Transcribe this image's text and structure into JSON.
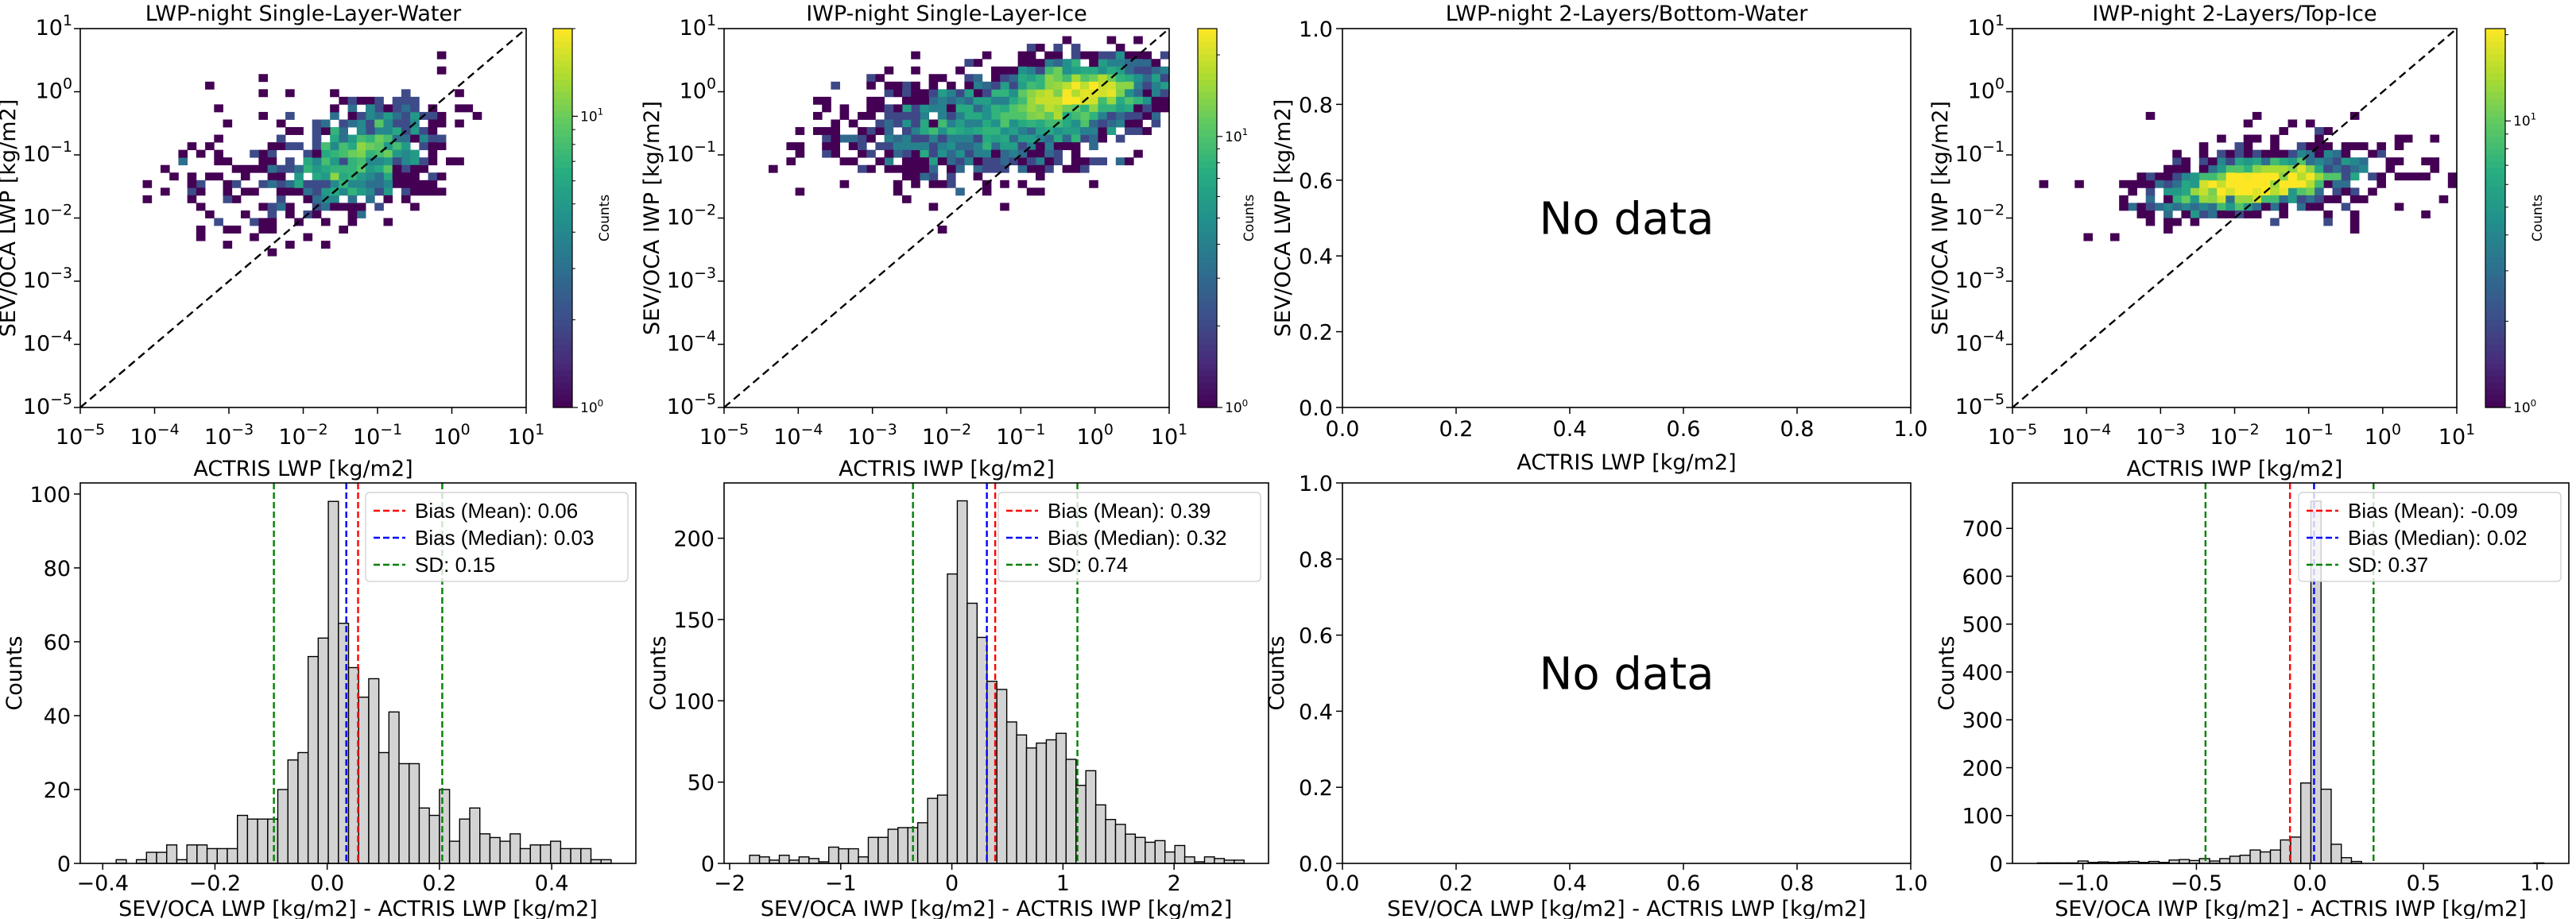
{
  "chart_data": [
    {
      "type": "heatmap",
      "title": "LWP-night Single-Layer-Water",
      "xlabel": "ACTRIS LWP [kg/m2]",
      "ylabel": "SEV/OCA LWP [kg/m2]",
      "xscale": "log",
      "yscale": "log",
      "xlim": [
        1e-05,
        10
      ],
      "ylim": [
        1e-05,
        10
      ],
      "tick_exponents": [
        "−5",
        "−4",
        "−3",
        "−2",
        "−1",
        "0",
        "1"
      ],
      "tick_base": "10",
      "identity_line": true,
      "bins": 50,
      "cmap": "viridis",
      "colorbar": {
        "label": "Counts",
        "scale": "log",
        "range": [
          1,
          20
        ],
        "tick_base": "10",
        "tick_exponents": [
          "0",
          "1"
        ]
      },
      "distribution": {
        "seed": 11,
        "clusters": [
          {
            "n": 700,
            "cx": -1.2,
            "cy": -1.0,
            "sx": 0.45,
            "sy": 0.42,
            "rho": 0.3
          },
          {
            "n": 160,
            "cx": -2.3,
            "cy": -1.3,
            "sx": 0.7,
            "sy": 0.5,
            "rho": 0.0
          }
        ]
      }
    },
    {
      "type": "heatmap",
      "title": "IWP-night Single-Layer-Ice",
      "xlabel": "ACTRIS IWP [kg/m2]",
      "ylabel": "SEV/OCA IWP [kg/m2]",
      "xscale": "log",
      "yscale": "log",
      "xlim": [
        1e-05,
        10
      ],
      "ylim": [
        1e-05,
        10
      ],
      "tick_exponents": [
        "−5",
        "−4",
        "−3",
        "−2",
        "−1",
        "0",
        "1"
      ],
      "tick_base": "10",
      "identity_line": true,
      "bins": 50,
      "cmap": "viridis",
      "colorbar": {
        "label": "Counts",
        "scale": "log",
        "range": [
          1,
          25
        ],
        "tick_base": "10",
        "tick_exponents": [
          "0",
          "1"
        ]
      },
      "distribution": {
        "seed": 23,
        "clusters": [
          {
            "n": 1400,
            "cx": -0.3,
            "cy": -0.05,
            "sx": 0.55,
            "sy": 0.28,
            "rho": 0.3
          },
          {
            "n": 900,
            "cx": -1.6,
            "cy": -0.6,
            "sx": 0.95,
            "sy": 0.45,
            "rho": 0.2
          }
        ]
      }
    },
    {
      "type": "scatter",
      "title": "LWP-night 2-Layers/Bottom-Water",
      "xlabel": "ACTRIS LWP [kg/m2]",
      "ylabel": "SEV/OCA LWP [kg/m2]",
      "xlim": [
        0,
        1
      ],
      "ylim": [
        0,
        1
      ],
      "xticks": [
        "0.0",
        "0.2",
        "0.4",
        "0.6",
        "0.8",
        "1.0"
      ],
      "yticks": [
        "0.0",
        "0.2",
        "0.4",
        "0.6",
        "0.8",
        "1.0"
      ],
      "annotation": "No data"
    },
    {
      "type": "heatmap",
      "title": "IWP-night 2-Layers/Top-Ice",
      "xlabel": "ACTRIS IWP [kg/m2]",
      "ylabel": "SEV/OCA IWP [kg/m2]",
      "xscale": "log",
      "yscale": "log",
      "xlim": [
        1e-05,
        10
      ],
      "ylim": [
        1e-05,
        10
      ],
      "tick_exponents": [
        "−5",
        "−4",
        "−3",
        "−2",
        "−1",
        "0",
        "1"
      ],
      "tick_base": "10",
      "identity_line": true,
      "bins": 50,
      "cmap": "viridis",
      "colorbar": {
        "label": "Counts",
        "scale": "log",
        "range": [
          1,
          21
        ],
        "tick_base": "10",
        "tick_exponents": [
          "0",
          "1"
        ]
      },
      "distribution": {
        "seed": 37,
        "clusters": [
          {
            "n": 1300,
            "cx": -1.7,
            "cy": -1.45,
            "sx": 0.6,
            "sy": 0.2,
            "rho": 0.5
          },
          {
            "n": 160,
            "cx": -1.4,
            "cy": -1.35,
            "sx": 1.2,
            "sy": 0.4,
            "rho": 0.0
          }
        ]
      }
    },
    {
      "type": "bar",
      "subtype": "histogram",
      "xlabel": "SEV/OCA LWP [kg/m2] - ACTRIS LWP [kg/m2]",
      "ylabel": "Counts",
      "xlim": [
        -0.44,
        0.55
      ],
      "ylim": [
        0,
        103
      ],
      "bin_start": -0.394,
      "bin_width": 0.018,
      "counts": [
        0,
        1,
        0,
        1,
        3,
        3,
        5,
        1,
        5,
        5,
        4,
        4,
        4,
        13,
        12,
        12,
        12,
        20,
        28,
        30,
        56,
        61,
        98,
        65,
        53,
        45,
        50,
        30,
        41,
        27,
        27,
        15,
        13,
        20,
        6,
        12,
        15,
        8,
        7,
        6,
        8,
        4,
        5,
        5,
        6,
        4,
        4,
        4,
        1,
        1
      ],
      "xticks": [
        {
          "v": -0.4,
          "label": "−0.4"
        },
        {
          "v": -0.2,
          "label": "−0.2"
        },
        {
          "v": 0.0,
          "label": "0.0"
        },
        {
          "v": 0.2,
          "label": "0.2"
        },
        {
          "v": 0.4,
          "label": "0.4"
        }
      ],
      "yticks": [
        {
          "v": 0,
          "label": "0"
        },
        {
          "v": 20,
          "label": "20"
        },
        {
          "v": 40,
          "label": "40"
        },
        {
          "v": 60,
          "label": "60"
        },
        {
          "v": 80,
          "label": "80"
        },
        {
          "v": 100,
          "label": "100"
        }
      ],
      "lines": [
        {
          "label": "Bias (Mean): 0.06",
          "values": [
            0.055
          ],
          "color": "#ff0000"
        },
        {
          "label": "Bias (Median): 0.03",
          "values": [
            0.034
          ],
          "color": "#0000ff"
        },
        {
          "label": "SD: 0.15",
          "values": [
            -0.095,
            0.205
          ],
          "color": "#008000"
        }
      ],
      "legend": "top-right"
    },
    {
      "type": "bar",
      "subtype": "histogram",
      "xlabel": "SEV/OCA IWP [kg/m2] - ACTRIS IWP [kg/m2]",
      "ylabel": "Counts",
      "xlim": [
        -2.05,
        2.85
      ],
      "ylim": [
        0,
        234
      ],
      "bin_start": -1.82,
      "bin_width": 0.089,
      "counts": [
        5,
        4,
        2,
        5,
        2,
        4,
        3,
        1,
        10,
        9,
        9,
        4,
        16,
        16,
        21,
        22,
        22,
        25,
        40,
        42,
        178,
        223,
        160,
        139,
        112,
        107,
        87,
        79,
        71,
        74,
        76,
        80,
        64,
        48,
        57,
        36,
        27,
        24,
        18,
        16,
        13,
        14,
        7,
        11,
        4,
        1,
        4,
        3,
        2,
        2
      ],
      "xticks": [
        {
          "v": -2,
          "label": "−2"
        },
        {
          "v": -1,
          "label": "−1"
        },
        {
          "v": 0,
          "label": "0"
        },
        {
          "v": 1,
          "label": "1"
        },
        {
          "v": 2,
          "label": "2"
        }
      ],
      "yticks": [
        {
          "v": 0,
          "label": "0"
        },
        {
          "v": 50,
          "label": "50"
        },
        {
          "v": 100,
          "label": "100"
        },
        {
          "v": 150,
          "label": "150"
        },
        {
          "v": 200,
          "label": "200"
        }
      ],
      "lines": [
        {
          "label": "Bias (Mean): 0.39",
          "values": [
            0.39
          ],
          "color": "#ff0000"
        },
        {
          "label": "Bias (Median): 0.32",
          "values": [
            0.315
          ],
          "color": "#0000ff"
        },
        {
          "label": "SD: 0.74",
          "values": [
            -0.35,
            1.13
          ],
          "color": "#008000"
        }
      ],
      "legend": "top-right"
    },
    {
      "type": "bar",
      "subtype": "histogram",
      "xlabel": "SEV/OCA LWP [kg/m2] - ACTRIS LWP [kg/m2]",
      "ylabel": "Counts",
      "xlim": [
        0,
        1
      ],
      "ylim": [
        0,
        1
      ],
      "bin_start": 0,
      "bin_width": 0.02,
      "counts": [],
      "xticks": [
        {
          "v": 0,
          "label": "0.0"
        },
        {
          "v": 0.2,
          "label": "0.2"
        },
        {
          "v": 0.4,
          "label": "0.4"
        },
        {
          "v": 0.6,
          "label": "0.6"
        },
        {
          "v": 0.8,
          "label": "0.8"
        },
        {
          "v": 1.0,
          "label": "1.0"
        }
      ],
      "yticks": [
        {
          "v": 0,
          "label": "0.0"
        },
        {
          "v": 0.2,
          "label": "0.2"
        },
        {
          "v": 0.4,
          "label": "0.4"
        },
        {
          "v": 0.6,
          "label": "0.6"
        },
        {
          "v": 0.8,
          "label": "0.8"
        },
        {
          "v": 1.0,
          "label": "1.0"
        }
      ],
      "lines": [],
      "annotation": "No data"
    },
    {
      "type": "bar",
      "subtype": "histogram",
      "xlabel": "SEV/OCA IWP [kg/m2] - ACTRIS IWP [kg/m2]",
      "ylabel": "Counts",
      "xlim": [
        -1.31,
        1.14
      ],
      "ylim": [
        0,
        795
      ],
      "bin_start": -1.2,
      "bin_width": 0.0446,
      "counts": [
        1,
        1,
        1,
        1,
        5,
        2,
        3,
        2,
        3,
        4,
        2,
        4,
        2,
        7,
        8,
        6,
        10,
        5,
        10,
        15,
        17,
        28,
        24,
        28,
        49,
        55,
        168,
        757,
        155,
        40,
        12,
        4,
        0,
        0,
        0,
        0,
        0,
        0,
        0,
        0,
        0,
        0,
        0,
        0,
        0,
        0,
        0,
        0,
        0,
        1
      ],
      "xticks": [
        {
          "v": -1.0,
          "label": "−1.0"
        },
        {
          "v": -0.5,
          "label": "−0.5"
        },
        {
          "v": 0.0,
          "label": "0.0"
        },
        {
          "v": 0.5,
          "label": "0.5"
        },
        {
          "v": 1.0,
          "label": "1.0"
        }
      ],
      "yticks": [
        {
          "v": 0,
          "label": "0"
        },
        {
          "v": 100,
          "label": "100"
        },
        {
          "v": 200,
          "label": "200"
        },
        {
          "v": 300,
          "label": "300"
        },
        {
          "v": 400,
          "label": "400"
        },
        {
          "v": 500,
          "label": "500"
        },
        {
          "v": 600,
          "label": "600"
        },
        {
          "v": 700,
          "label": "700"
        }
      ],
      "lines": [
        {
          "label": "Bias (Mean): -0.09",
          "values": [
            -0.088
          ],
          "color": "#ff0000"
        },
        {
          "label": "Bias (Median): 0.02",
          "values": [
            0.018
          ],
          "color": "#0000ff"
        },
        {
          "label": "SD: 0.37",
          "values": [
            -0.46,
            0.28
          ],
          "color": "#008000"
        }
      ],
      "legend": "top-right"
    }
  ],
  "colors": {
    "bar_fill": "#d3d3d3",
    "bar_edge": "#000000",
    "identity_line": "#000000"
  }
}
